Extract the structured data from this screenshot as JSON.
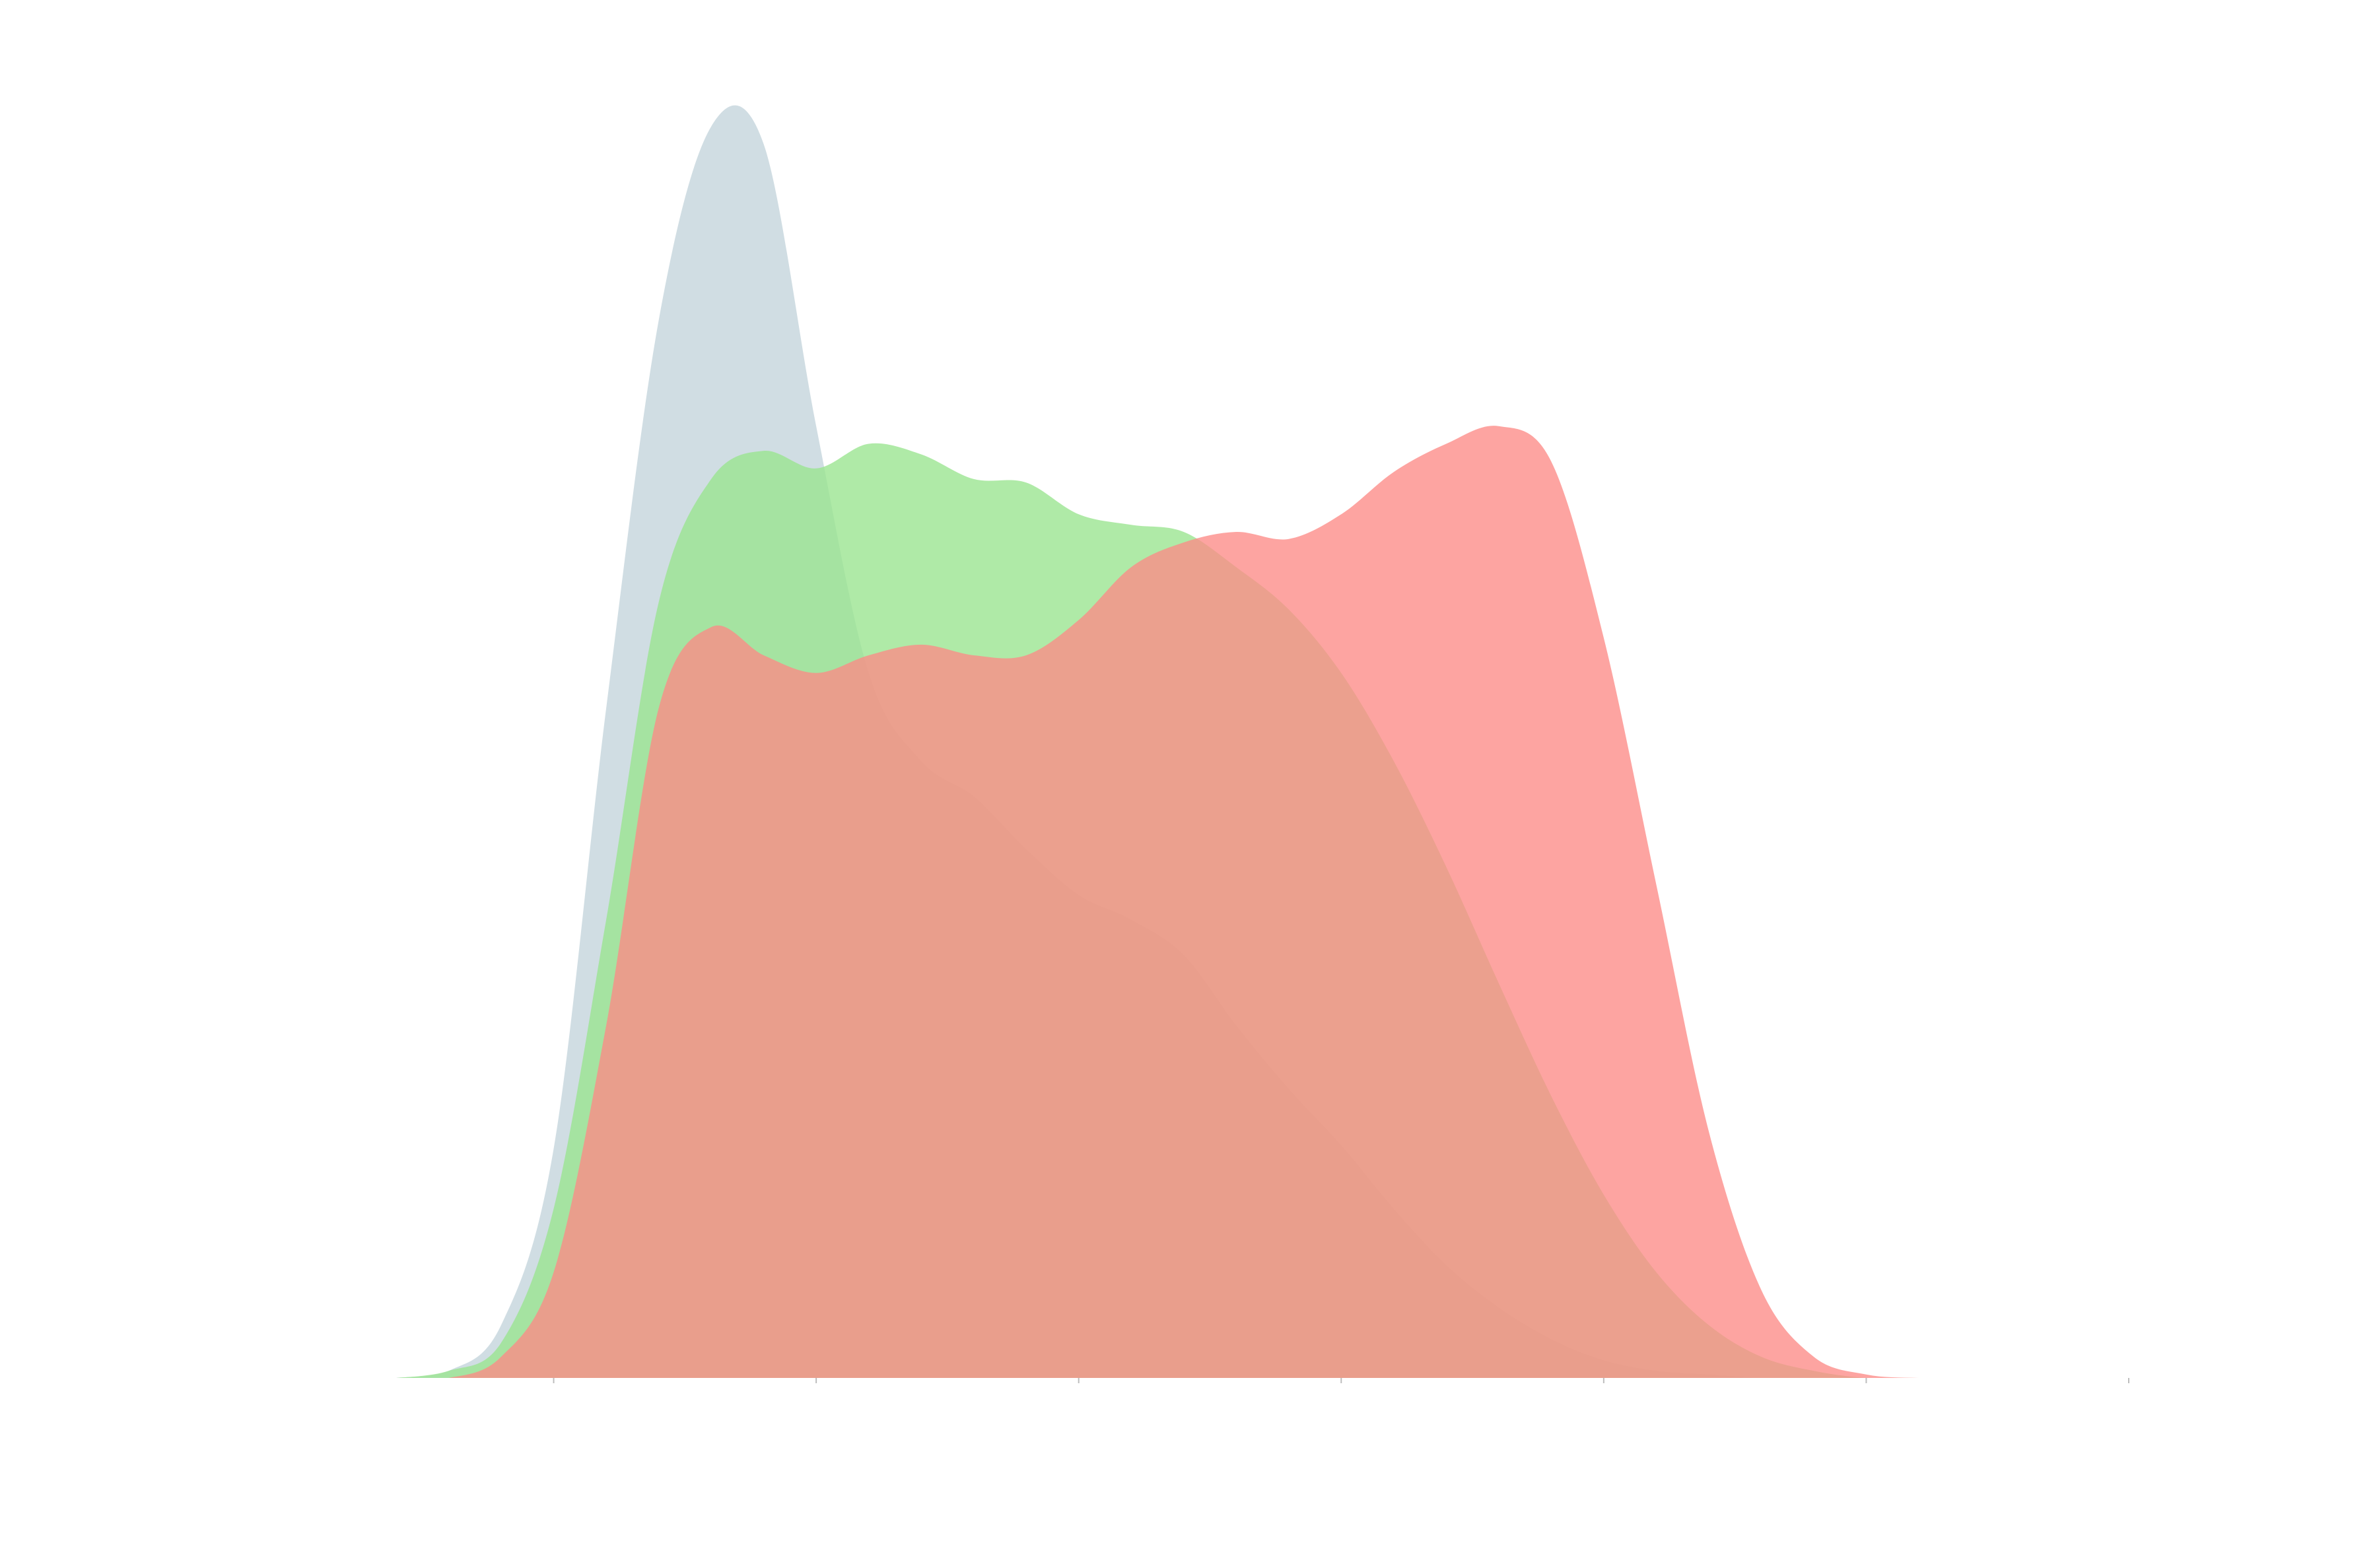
{
  "chart_data": {
    "type": "area",
    "title": "",
    "xlabel": "",
    "ylabel": "",
    "grid": false,
    "legend": "none",
    "xlim": [
      -0.6,
      6.0
    ],
    "ylim": [
      0,
      0.36
    ],
    "xticks": [
      0,
      1,
      2,
      3,
      4,
      5,
      6
    ],
    "xtick_labels": [
      "",
      "",
      "",
      "",
      "",
      "",
      ""
    ],
    "x": [
      -0.6,
      -0.4,
      -0.2,
      0.0,
      0.2,
      0.4,
      0.6,
      0.8,
      1.0,
      1.2,
      1.4,
      1.6,
      1.8,
      2.0,
      2.2,
      2.4,
      2.6,
      2.8,
      3.0,
      3.2,
      3.4,
      3.6,
      3.8,
      4.0,
      4.2,
      4.4,
      4.6,
      4.8,
      5.0,
      5.2,
      5.4,
      5.6,
      5.8,
      6.0
    ],
    "series": [
      {
        "color": "#c4d4dc",
        "opacity": 0.8,
        "values": [
          0.0,
          0.002,
          0.015,
          0.065,
          0.19,
          0.3,
          0.355,
          0.35,
          0.27,
          0.2,
          0.175,
          0.165,
          0.15,
          0.137,
          0.13,
          0.12,
          0.1,
          0.082,
          0.066,
          0.048,
          0.032,
          0.02,
          0.011,
          0.005,
          0.002,
          0.001,
          0.0,
          0.0,
          0.0,
          0.0,
          0.0,
          0.0,
          0.0,
          0.0
        ]
      },
      {
        "color": "#98e48e",
        "opacity": 0.78,
        "values": [
          0.0,
          0.002,
          0.01,
          0.048,
          0.13,
          0.22,
          0.255,
          0.263,
          0.258,
          0.265,
          0.262,
          0.255,
          0.254,
          0.245,
          0.242,
          0.24,
          0.23,
          0.218,
          0.2,
          0.175,
          0.145,
          0.112,
          0.08,
          0.052,
          0.03,
          0.015,
          0.006,
          0.002,
          0.0,
          0.0,
          0.0,
          0.0,
          0.0,
          0.0
        ]
      },
      {
        "color": "#fd8a86",
        "opacity": 0.78,
        "values": [
          0.0,
          0.0,
          0.006,
          0.03,
          0.1,
          0.19,
          0.213,
          0.205,
          0.2,
          0.205,
          0.208,
          0.205,
          0.205,
          0.215,
          0.23,
          0.237,
          0.24,
          0.238,
          0.245,
          0.257,
          0.265,
          0.27,
          0.26,
          0.21,
          0.14,
          0.07,
          0.025,
          0.006,
          0.001,
          0.0,
          0.0,
          0.0,
          0.0,
          0.0
        ]
      }
    ]
  }
}
